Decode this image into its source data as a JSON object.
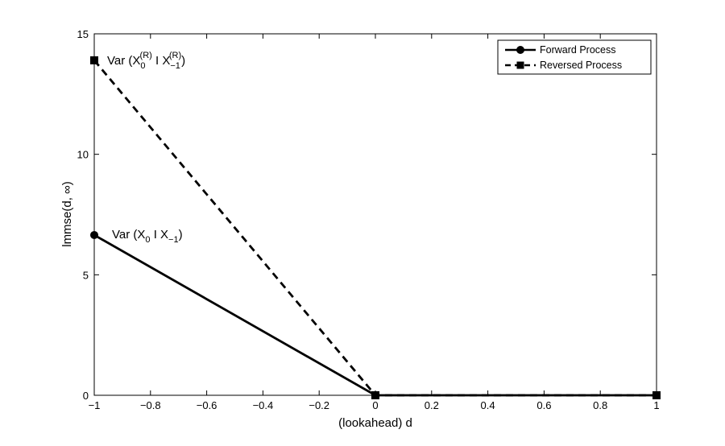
{
  "chart_data": {
    "type": "line",
    "xlabel": "(lookahead) d",
    "ylabel": "lmmse(d, ∞)",
    "xlim": [
      -1,
      1
    ],
    "ylim": [
      0,
      15
    ],
    "xticks": [
      -1,
      -0.8,
      -0.6,
      -0.4,
      -0.2,
      0,
      0.2,
      0.4,
      0.6,
      0.8,
      1
    ],
    "xtick_labels": [
      "−1",
      "−0.8",
      "−0.6",
      "−0.4",
      "−0.2",
      "0",
      "0.2",
      "0.4",
      "0.6",
      "0.8",
      "1"
    ],
    "yticks": [
      0,
      5,
      10,
      15
    ],
    "ytick_labels": [
      "0",
      "5",
      "10",
      "15"
    ],
    "grid": false,
    "legend_position": "top-right",
    "series": [
      {
        "name": "Forward Process",
        "style": "solid",
        "marker": "circle",
        "color": "#000000",
        "x": [
          -1,
          0,
          1
        ],
        "y": [
          6.65,
          0,
          0
        ]
      },
      {
        "name": "Reversed Process",
        "style": "dashed",
        "marker": "square",
        "color": "#000000",
        "x": [
          -1,
          0,
          1
        ],
        "y": [
          13.9,
          0,
          0
        ]
      }
    ],
    "annotations": [
      {
        "id": "reversed",
        "x": -1,
        "y": 13.9,
        "text": "Var (X0(R) I X−1(R))",
        "parts": {
          "a": "Var (X",
          "sub1": "0",
          "sup1": "(R)",
          "b": " I X",
          "sub2": "−1",
          "sup2": "(R)",
          "c": ")"
        }
      },
      {
        "id": "forward",
        "x": -1,
        "y": 6.65,
        "text": "Var (X0 I X−1)",
        "parts": {
          "a": "Var (X",
          "sub1": "0",
          "b": " I X",
          "sub2": "−1",
          "c": ")"
        }
      }
    ]
  }
}
